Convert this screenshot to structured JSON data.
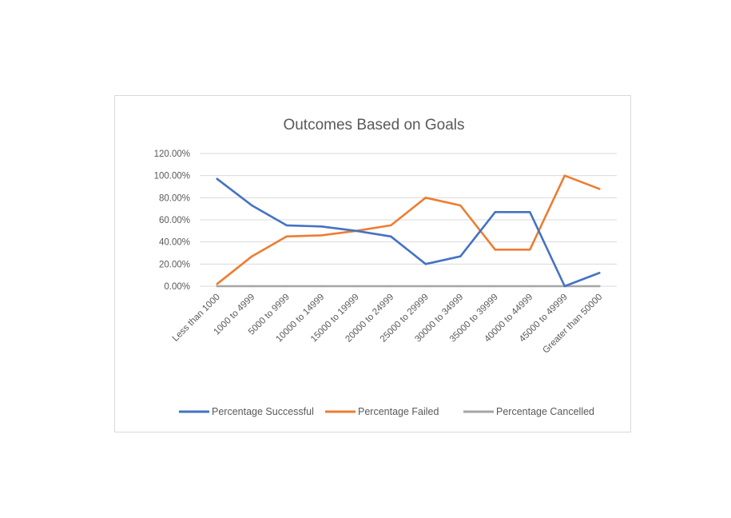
{
  "chart_data": {
    "type": "line",
    "title": "Outcomes Based on Goals",
    "xlabel": "",
    "ylabel": "",
    "categories": [
      "Less than 1000",
      "1000 to 4999",
      "5000 to 9999",
      "10000 to 14999",
      "15000 to 19999",
      "20000 to 24999",
      "25000 to 29999",
      "30000 to 34999",
      "35000 to 39999",
      "40000 to 44999",
      "45000 to 49999",
      "Greater than 50000"
    ],
    "ylim": [
      0,
      120
    ],
    "yticks": [
      "0.00%",
      "20.00%",
      "40.00%",
      "60.00%",
      "80.00%",
      "100.00%",
      "120.00%"
    ],
    "grid": true,
    "legend_position": "bottom",
    "series": [
      {
        "name": "Percentage Successful",
        "color": "#4472c4",
        "values": [
          97,
          73,
          55,
          54,
          50,
          45,
          20,
          27,
          67,
          67,
          0,
          12
        ]
      },
      {
        "name": "Percentage Failed",
        "color": "#ed7d31",
        "values": [
          2,
          27,
          45,
          46,
          50,
          55,
          80,
          73,
          33,
          33,
          100,
          88
        ]
      },
      {
        "name": "Percentage Cancelled",
        "color": "#a5a5a5",
        "values": [
          0,
          0,
          0,
          0,
          0,
          0,
          0,
          0,
          0,
          0,
          0,
          0
        ]
      }
    ]
  }
}
